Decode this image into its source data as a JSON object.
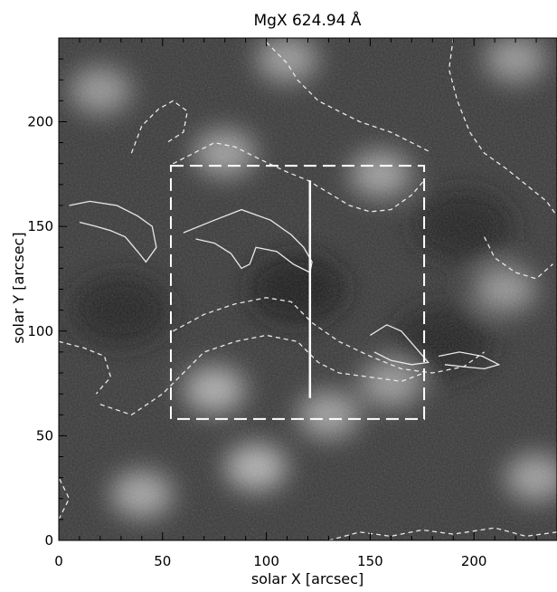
{
  "chart_data": {
    "type": "heatmap",
    "title": "MgX 624.94 Å",
    "xlabel": "solar X [arcsec]",
    "ylabel": "solar Y [arcsec]",
    "xlim": [
      0,
      240
    ],
    "ylim": [
      0,
      240
    ],
    "xticks": [
      0,
      50,
      100,
      150,
      200
    ],
    "yticks": [
      0,
      50,
      100,
      150,
      200
    ],
    "colormap": "grayscale",
    "bright_regions": [
      {
        "x": 95,
        "y": 35,
        "intensity": 0.75
      },
      {
        "x": 40,
        "y": 22,
        "intensity": 0.6
      },
      {
        "x": 130,
        "y": 60,
        "intensity": 0.55
      },
      {
        "x": 75,
        "y": 72,
        "intensity": 0.7
      },
      {
        "x": 160,
        "y": 75,
        "intensity": 0.5
      },
      {
        "x": 230,
        "y": 30,
        "intensity": 0.55
      },
      {
        "x": 215,
        "y": 120,
        "intensity": 0.45
      },
      {
        "x": 80,
        "y": 185,
        "intensity": 0.55
      },
      {
        "x": 155,
        "y": 175,
        "intensity": 0.55
      },
      {
        "x": 110,
        "y": 230,
        "intensity": 0.5
      },
      {
        "x": 20,
        "y": 215,
        "intensity": 0.45
      },
      {
        "x": 220,
        "y": 230,
        "intensity": 0.45
      }
    ],
    "dark_regions": [
      {
        "x": 115,
        "y": 120,
        "intensity": 0.7
      },
      {
        "x": 30,
        "y": 110,
        "intensity": 0.55
      },
      {
        "x": 195,
        "y": 150,
        "intensity": 0.5
      },
      {
        "x": 185,
        "y": 95,
        "intensity": 0.45
      }
    ],
    "overlays": {
      "box": {
        "x0": 54,
        "x1": 176,
        "y0": 58,
        "y1": 179,
        "style": "dashed",
        "color": "#ffffff"
      },
      "slit": {
        "x": 121,
        "y0": 68,
        "y1": 172,
        "style": "solid",
        "color": "#ffffff"
      }
    },
    "contours": [
      {
        "style": "solid",
        "points": [
          [
            60,
            147
          ],
          [
            75,
            153
          ],
          [
            88,
            158
          ],
          [
            102,
            153
          ],
          [
            112,
            146
          ],
          [
            118,
            140
          ],
          [
            122,
            133
          ],
          [
            121,
            128
          ],
          [
            113,
            132
          ],
          [
            105,
            138
          ],
          [
            95,
            140
          ],
          [
            92,
            132
          ],
          [
            88,
            130
          ],
          [
            83,
            137
          ],
          [
            75,
            142
          ],
          [
            66,
            144
          ]
        ]
      },
      {
        "style": "solid",
        "points": [
          [
            5,
            160
          ],
          [
            15,
            162
          ],
          [
            28,
            160
          ],
          [
            38,
            155
          ],
          [
            45,
            150
          ],
          [
            47,
            140
          ],
          [
            42,
            133
          ],
          [
            38,
            138
          ],
          [
            32,
            145
          ],
          [
            25,
            148
          ],
          [
            18,
            150
          ],
          [
            10,
            152
          ]
        ]
      },
      {
        "style": "solid",
        "points": [
          [
            150,
            98
          ],
          [
            158,
            103
          ],
          [
            165,
            100
          ],
          [
            172,
            92
          ],
          [
            178,
            85
          ],
          [
            170,
            84
          ],
          [
            160,
            86
          ],
          [
            152,
            90
          ]
        ]
      },
      {
        "style": "solid",
        "points": [
          [
            183,
            88
          ],
          [
            193,
            90
          ],
          [
            204,
            88
          ],
          [
            212,
            84
          ],
          [
            205,
            82
          ],
          [
            195,
            83
          ],
          [
            186,
            84
          ]
        ]
      },
      {
        "style": "dashed",
        "points": [
          [
            55,
            100
          ],
          [
            70,
            108
          ],
          [
            85,
            113
          ],
          [
            100,
            116
          ],
          [
            112,
            114
          ],
          [
            122,
            104
          ],
          [
            135,
            95
          ],
          [
            150,
            88
          ],
          [
            165,
            82
          ],
          [
            180,
            80
          ],
          [
            195,
            83
          ],
          [
            205,
            90
          ]
        ]
      },
      {
        "style": "dashed",
        "points": [
          [
            20,
            65
          ],
          [
            35,
            60
          ],
          [
            50,
            70
          ],
          [
            60,
            80
          ],
          [
            70,
            90
          ],
          [
            85,
            95
          ],
          [
            100,
            98
          ],
          [
            115,
            95
          ],
          [
            125,
            85
          ],
          [
            135,
            80
          ],
          [
            150,
            78
          ],
          [
            165,
            76
          ],
          [
            176,
            80
          ]
        ]
      },
      {
        "style": "dashed",
        "points": [
          [
            55,
            180
          ],
          [
            65,
            185
          ],
          [
            75,
            190
          ],
          [
            85,
            188
          ],
          [
            97,
            182
          ],
          [
            110,
            176
          ],
          [
            120,
            172
          ],
          [
            130,
            166
          ],
          [
            140,
            160
          ],
          [
            150,
            157
          ],
          [
            160,
            158
          ],
          [
            170,
            165
          ],
          [
            176,
            172
          ]
        ]
      },
      {
        "style": "dashed",
        "points": [
          [
            35,
            185
          ],
          [
            40,
            198
          ],
          [
            48,
            206
          ],
          [
            55,
            210
          ],
          [
            62,
            205
          ],
          [
            60,
            195
          ],
          [
            52,
            190
          ]
        ]
      },
      {
        "style": "dashed",
        "points": [
          [
            100,
            238
          ],
          [
            110,
            228
          ],
          [
            115,
            220
          ],
          [
            125,
            210
          ],
          [
            135,
            205
          ],
          [
            145,
            200
          ],
          [
            160,
            195
          ],
          [
            170,
            190
          ],
          [
            178,
            186
          ]
        ]
      },
      {
        "style": "dashed",
        "points": [
          [
            190,
            240
          ],
          [
            188,
            225
          ],
          [
            192,
            210
          ],
          [
            198,
            195
          ],
          [
            205,
            185
          ],
          [
            215,
            178
          ],
          [
            225,
            170
          ],
          [
            235,
            162
          ],
          [
            240,
            155
          ]
        ]
      },
      {
        "style": "dashed",
        "points": [
          [
            205,
            145
          ],
          [
            210,
            135
          ],
          [
            220,
            128
          ],
          [
            230,
            125
          ],
          [
            238,
            132
          ]
        ]
      },
      {
        "style": "dashed",
        "points": [
          [
            0,
            10
          ],
          [
            5,
            20
          ],
          [
            0,
            30
          ]
        ]
      },
      {
        "style": "dashed",
        "points": [
          [
            130,
            0
          ],
          [
            145,
            4
          ],
          [
            160,
            2
          ],
          [
            175,
            5
          ],
          [
            190,
            3
          ],
          [
            210,
            6
          ],
          [
            225,
            2
          ],
          [
            240,
            4
          ]
        ]
      },
      {
        "style": "dashed",
        "points": [
          [
            0,
            95
          ],
          [
            12,
            92
          ],
          [
            22,
            88
          ],
          [
            25,
            78
          ],
          [
            18,
            70
          ]
        ]
      }
    ]
  }
}
